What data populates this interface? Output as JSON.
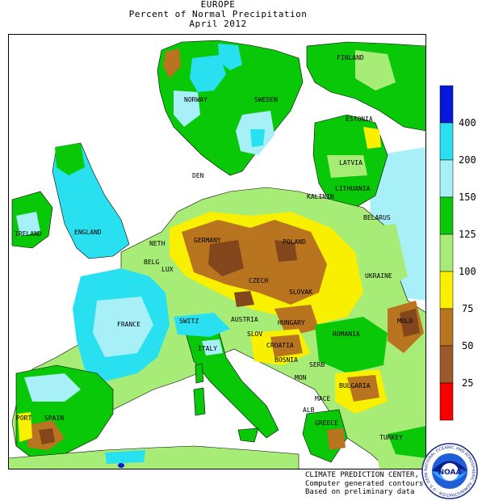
{
  "header": {
    "region": "EUROPE",
    "subtitle": "Percent of Normal Precipitation",
    "period": "April 2012"
  },
  "legend": {
    "colors": {
      "c0_25": "#f80000",
      "c25_50": "#9c5a2a",
      "c50_75": "#b8741e",
      "c75_100": "#f8f000",
      "c100_125": "#a8ec78",
      "c125_150": "#08c808",
      "c150_200": "#a8f0f8",
      "c200_400": "#28e0f0",
      "c400_plus": "#0818d8"
    },
    "ticks": [
      "400",
      "200",
      "150",
      "125",
      "100",
      "75",
      "50",
      "25"
    ]
  },
  "map": {
    "labels": {
      "finland": "FINLAND",
      "norway": "NORWAY",
      "sweden": "SWEDEN",
      "estonia": "ESTONIA",
      "latvia": "LATVIA",
      "den": "DEN",
      "lithuania": "LITHUANIA",
      "kalinin": "KALININ",
      "belarus": "BELARUS",
      "ireland": "IRELAND",
      "england": "ENGLAND",
      "neth": "NETH",
      "germany": "GERMANY",
      "poland": "POLAND",
      "belg": "BELG",
      "lux": "LUX",
      "czech": "CZECH",
      "ukraine": "UKRAINE",
      "slovak": "SLOVAK",
      "france": "FRANCE",
      "switz": "SWITZ",
      "austria": "AUSTRIA",
      "hungary": "HUNGARY",
      "slov": "SLOV",
      "mold": "MOLD",
      "romania": "ROMANIA",
      "croatia": "CROATIA",
      "italy": "ITALY",
      "bosnia": "BOSNIA",
      "serb": "SERB",
      "mon": "MON",
      "bulgaria": "BULGARIA",
      "port": "PORT",
      "spain": "SPAIN",
      "mace": "MACE",
      "alb": "ALB",
      "greece": "GREECE",
      "turkey": "TURKEY"
    }
  },
  "credits": {
    "line1": "CLIMATE PREDICTION CENTER, NOAA",
    "line2": "Computer generated contours",
    "line3": "Based on preliminary data"
  },
  "logo": {
    "name": "NOAA",
    "ring_text": "NATIONAL OCEANIC AND ATMOSPHERIC ADMINISTRATION · U.S. DEPARTMENT OF COMMERCE"
  }
}
